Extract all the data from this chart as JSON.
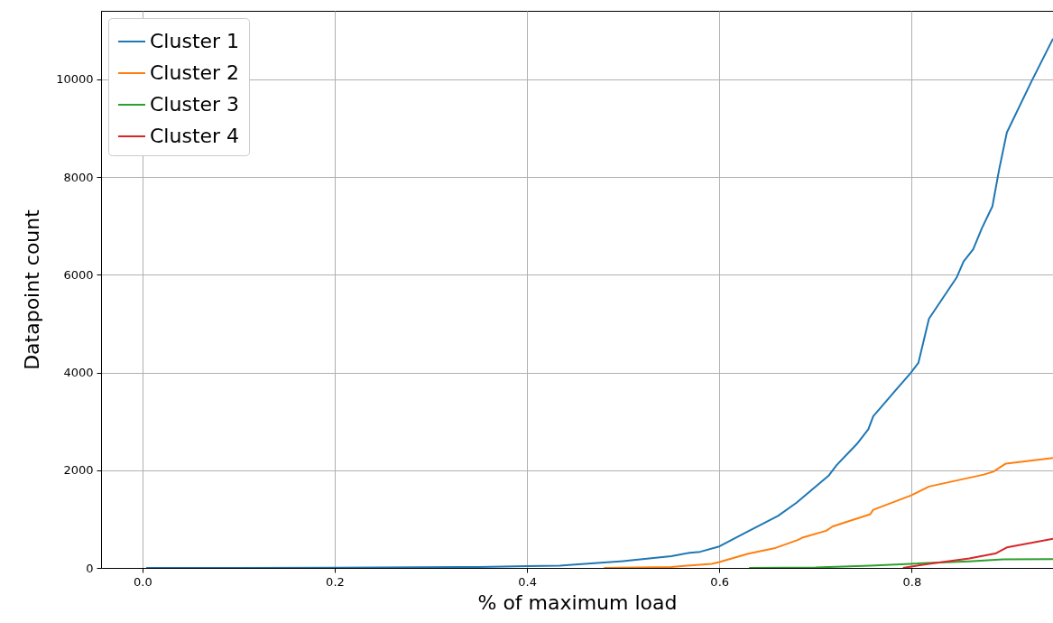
{
  "chart_data": {
    "type": "line",
    "xlabel": "% of maximum load",
    "ylabel": "Datapoint count",
    "xlim": [
      -0.043,
      0.947
    ],
    "ylim": [
      0,
      11400
    ],
    "xticks": [
      {
        "value": 0,
        "label": "0.0"
      },
      {
        "value": 0.2,
        "label": "0.2"
      },
      {
        "value": 0.4,
        "label": "0.4"
      },
      {
        "value": 0.6,
        "label": "0.6"
      },
      {
        "value": 0.8,
        "label": "0.8"
      }
    ],
    "yticks": [
      0,
      2000,
      4000,
      6000,
      8000,
      10000
    ],
    "grid": true,
    "legend": "top left",
    "marker": "none",
    "line_style": "solid",
    "series": [
      {
        "name": "Cluster 1",
        "color": "#1f77b4",
        "x": [
          0.004,
          0.2,
          0.35,
          0.4,
          0.434,
          0.45,
          0.5,
          0.511,
          0.55,
          0.569,
          0.58,
          0.6,
          0.626,
          0.661,
          0.68,
          0.714,
          0.722,
          0.743,
          0.755,
          0.76,
          0.783,
          0.799,
          0.807,
          0.818,
          0.847,
          0.854,
          0.864,
          0.873,
          0.884,
          0.891,
          0.899,
          0.925,
          0.947
        ],
        "values": [
          0,
          5,
          20,
          35,
          45,
          70,
          140,
          160,
          240,
          310,
          330,
          440,
          710,
          1065,
          1330,
          1895,
          2105,
          2535,
          2840,
          3100,
          3630,
          3990,
          4195,
          5100,
          5950,
          6270,
          6520,
          6950,
          7400,
          8155,
          8910,
          9970,
          10830
        ]
      },
      {
        "name": "Cluster 2",
        "color": "#ff7f0e",
        "x": [
          0.48,
          0.55,
          0.592,
          0.6,
          0.63,
          0.657,
          0.682,
          0.687,
          0.711,
          0.718,
          0.757,
          0.76,
          0.799,
          0.818,
          0.875,
          0.885,
          0.898,
          0.947
        ],
        "values": [
          0,
          20,
          85,
          120,
          290,
          400,
          575,
          625,
          760,
          850,
          1100,
          1190,
          1480,
          1665,
          1910,
          1970,
          2135,
          2250
        ]
      },
      {
        "name": "Cluster 3",
        "color": "#2ca02c",
        "x": [
          0.631,
          0.7,
          0.757,
          0.799,
          0.86,
          0.895,
          0.947
        ],
        "values": [
          0,
          10,
          45,
          85,
          135,
          175,
          180
        ]
      },
      {
        "name": "Cluster 4",
        "color": "#d62728",
        "x": [
          0.791,
          0.818,
          0.86,
          0.887,
          0.899,
          0.947
        ],
        "values": [
          0,
          85,
          195,
          295,
          420,
          595
        ]
      }
    ]
  }
}
